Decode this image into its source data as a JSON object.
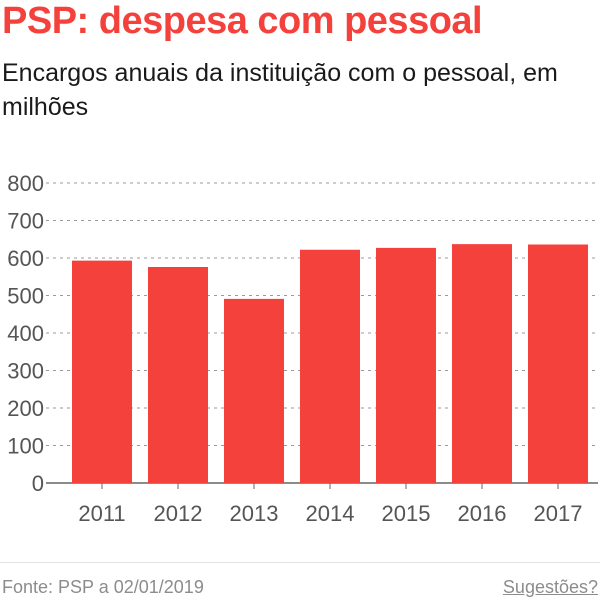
{
  "header": {
    "title": "PSP: despesa com pessoal",
    "subtitle": "Encargos anuais da instituição com o pessoal, em milhões"
  },
  "chart_data": {
    "type": "bar",
    "categories": [
      "2011",
      "2012",
      "2013",
      "2014",
      "2015",
      "2016",
      "2017"
    ],
    "values": [
      593,
      576,
      491,
      622,
      627,
      637,
      636
    ],
    "ylim": [
      0,
      800
    ],
    "yticks": [
      0,
      100,
      200,
      300,
      400,
      500,
      600,
      700,
      800
    ],
    "grid": true,
    "colors": {
      "bar": "#f4413c",
      "grid": "#9a9a9a",
      "axis_text": "#555555"
    }
  },
  "footer": {
    "source": "Fonte: PSP a 02/01/2019",
    "suggestions": "Sugestões?"
  }
}
